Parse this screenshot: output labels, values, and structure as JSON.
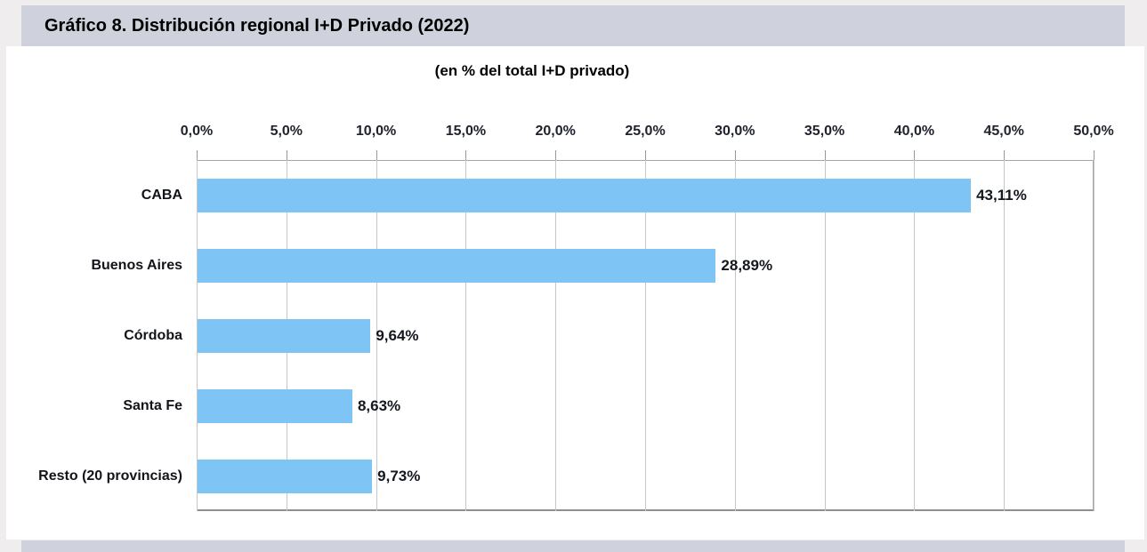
{
  "figure": {
    "title": "Gráfico 8. Distribución regional I+D Privado (2022)",
    "subtitle": "(en % del total I+D privado)"
  },
  "chart_data": {
    "type": "bar",
    "orientation": "horizontal",
    "title": "Gráfico 8. Distribución regional I+D Privado (2022)",
    "subtitle": "(en % del total I+D privado)",
    "categories": [
      "CABA",
      "Buenos Aires",
      "Córdoba",
      "Santa Fe",
      "Resto (20 provincias)"
    ],
    "values": [
      43.11,
      28.89,
      9.64,
      8.63,
      9.73
    ],
    "value_labels": [
      "43,11%",
      "28,89%",
      "9,64%",
      "8,63%",
      "9,73%"
    ],
    "x_axis": {
      "min": 0,
      "max": 50,
      "step": 5,
      "position": "top",
      "tick_labels": [
        "0,0%",
        "5,0%",
        "10,0%",
        "15,0%",
        "20,0%",
        "25,0%",
        "30,0%",
        "35,0%",
        "40,0%",
        "45,0%",
        "50,0%"
      ]
    },
    "grid": true,
    "legend": false,
    "bar_color": "#7ec5f5"
  },
  "colors": {
    "bar": "#7ec5f5",
    "band": "#cfd2dd",
    "page_background": "#efedee",
    "panel_background": "#ffffff",
    "gridline": "#c6c6c6",
    "frame": "#a6a6a6",
    "tick_text": "#20232e",
    "label_text": "#15171f"
  }
}
